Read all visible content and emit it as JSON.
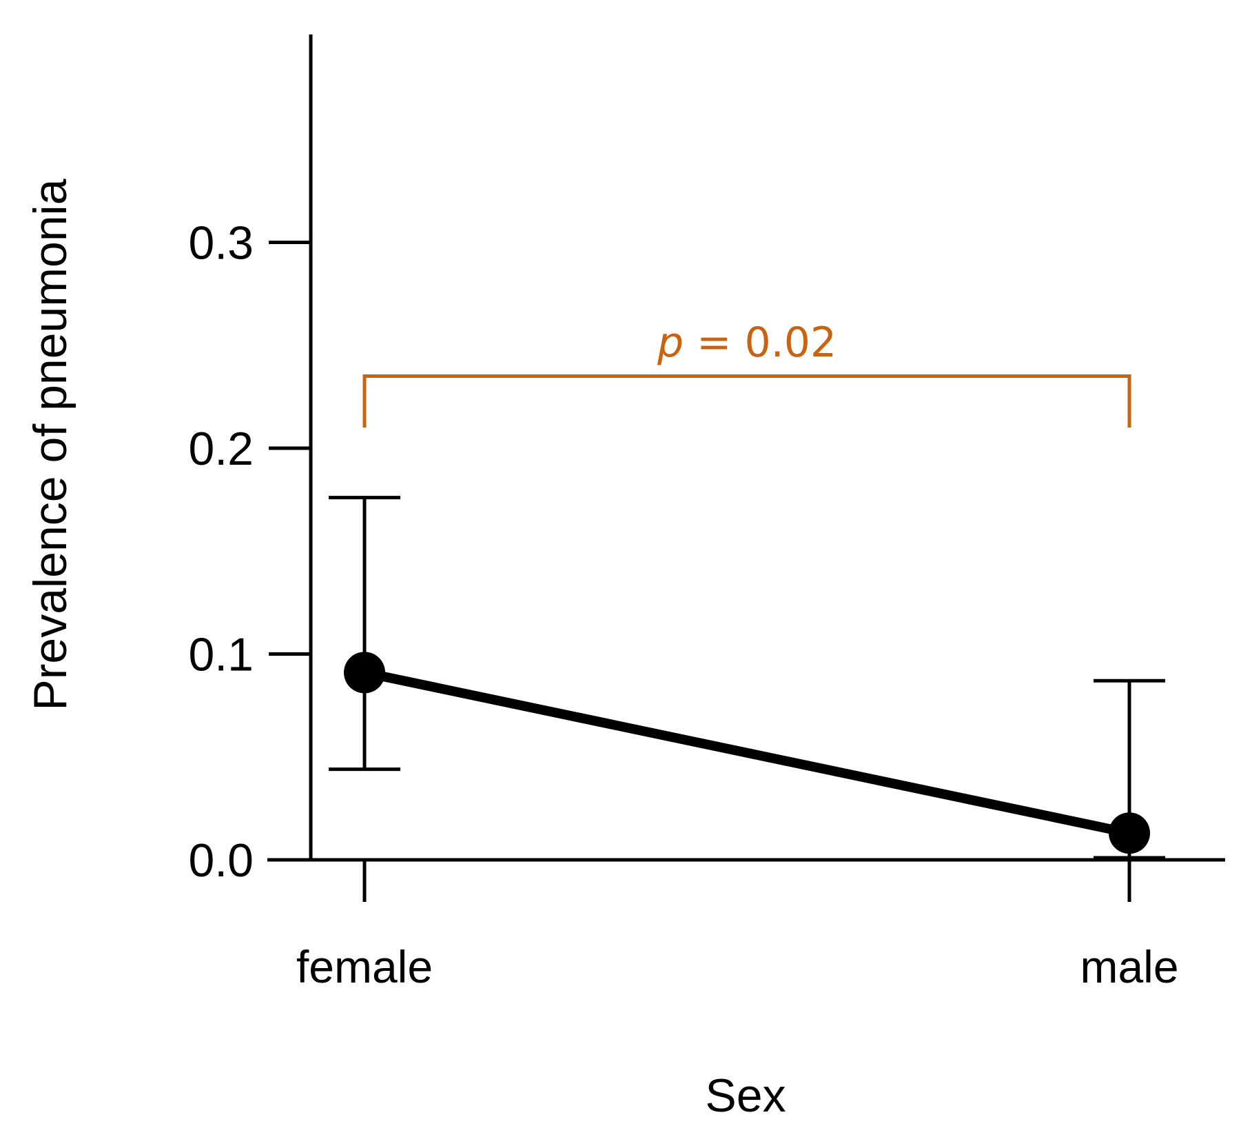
{
  "chart_data": {
    "type": "line",
    "title": "",
    "xlabel": "Sex",
    "ylabel": "Prevalence of pneumonia",
    "categories": [
      "female",
      "male"
    ],
    "series": [
      {
        "name": "Prevalence of pneumonia",
        "values": [
          0.091,
          0.013
        ],
        "error_low": [
          0.044,
          0.001
        ],
        "error_high": [
          0.176,
          0.087
        ]
      }
    ],
    "ylim": [
      0.0,
      0.4
    ],
    "yticks": [
      "0.0",
      "0.1",
      "0.2",
      "0.3"
    ],
    "ytick_values": [
      0.0,
      0.1,
      0.2,
      0.3
    ],
    "grid": false,
    "annotation": {
      "p_symbol": "p",
      "p_rest": " = 0.02",
      "bracket_y": 0.235,
      "bracket_bottom": 0.21,
      "color": "#c8640f"
    }
  }
}
